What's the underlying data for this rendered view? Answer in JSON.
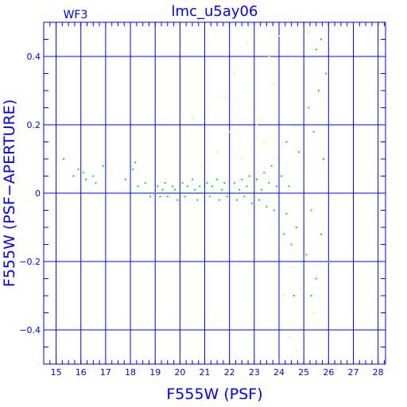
{
  "chart_data": {
    "type": "scatter",
    "title": "lmc_u5ay06",
    "corner_label": "WF3",
    "xlabel": "F555W (PSF)",
    "ylabel": "F555W (PSF−APERTURE)",
    "xlim": [
      14.5,
      28.3
    ],
    "ylim": [
      -0.5,
      0.5
    ],
    "x_ticks": [
      15,
      16,
      17,
      18,
      19,
      20,
      21,
      22,
      23,
      24,
      25,
      26,
      27,
      28
    ],
    "y_ticks": [
      -0.4,
      -0.2,
      0,
      0.2,
      0.4
    ],
    "x_tick_labels": [
      "15",
      "16",
      "17",
      "18",
      "19",
      "20",
      "21",
      "22",
      "23",
      "24",
      "25",
      "26",
      "27",
      "28"
    ],
    "y_tick_labels": [
      "−0.4",
      "−0.2",
      "0",
      "0.2",
      "0.4"
    ],
    "grid": true,
    "colors": {
      "frame": "#0000ff",
      "grid": "#0000ff",
      "text": "#0000ff",
      "main_series": "#00e600",
      "secondary_series": "#ffff00"
    },
    "series": [
      {
        "color": "#00e600",
        "points": [
          [
            15.3,
            0.1
          ],
          [
            15.7,
            0.05
          ],
          [
            15.9,
            0.07
          ],
          [
            16.1,
            0.06
          ],
          [
            16.2,
            0.04
          ],
          [
            16.5,
            0.05
          ],
          [
            16.6,
            0.03
          ],
          [
            16.9,
            0.08
          ],
          [
            17.0,
            0.06
          ],
          [
            17.8,
            0.04
          ],
          [
            18.0,
            0.01
          ],
          [
            18.1,
            0.07
          ],
          [
            18.2,
            0.09
          ],
          [
            18.3,
            0.02
          ],
          [
            18.5,
            0.0
          ],
          [
            18.6,
            0.03
          ],
          [
            18.8,
            -0.01
          ],
          [
            19.0,
            0.0
          ],
          [
            19.1,
            0.02
          ],
          [
            19.2,
            -0.01
          ],
          [
            19.3,
            0.01
          ],
          [
            19.4,
            0.03
          ],
          [
            19.5,
            -0.01
          ],
          [
            19.6,
            0.0
          ],
          [
            19.7,
            0.02
          ],
          [
            19.8,
            0.01
          ],
          [
            19.9,
            -0.02
          ],
          [
            20.0,
            0.01
          ],
          [
            20.1,
            0.03
          ],
          [
            20.2,
            -0.01
          ],
          [
            20.3,
            0.02
          ],
          [
            20.4,
            0.0
          ],
          [
            20.5,
            0.04
          ],
          [
            20.6,
            0.01
          ],
          [
            20.7,
            -0.02
          ],
          [
            20.8,
            0.02
          ],
          [
            20.9,
            0.0
          ],
          [
            21.0,
            0.01
          ],
          [
            21.1,
            0.03
          ],
          [
            21.2,
            -0.01
          ],
          [
            21.3,
            0.02
          ],
          [
            21.4,
            0.0
          ],
          [
            21.5,
            0.04
          ],
          [
            21.6,
            -0.02
          ],
          [
            21.7,
            0.01
          ],
          [
            21.8,
            0.03
          ],
          [
            21.9,
            -0.01
          ],
          [
            22.0,
            0.02
          ],
          [
            22.1,
            0.0
          ],
          [
            22.2,
            0.03
          ],
          [
            22.3,
            -0.02
          ],
          [
            22.4,
            0.01
          ],
          [
            22.5,
            0.04
          ],
          [
            22.6,
            -0.01
          ],
          [
            22.7,
            0.02
          ],
          [
            22.8,
            0.05
          ],
          [
            22.9,
            -0.03
          ],
          [
            23.0,
            0.02
          ],
          [
            23.1,
            0.04
          ],
          [
            23.2,
            -0.02
          ],
          [
            23.3,
            0.01
          ],
          [
            23.4,
            0.06
          ],
          [
            23.5,
            -0.04
          ],
          [
            23.6,
            0.03
          ],
          [
            23.7,
            0.08
          ],
          [
            23.8,
            -0.05
          ],
          [
            23.9,
            0.02
          ],
          [
            24.0,
            0.1
          ],
          [
            24.0,
            -0.08
          ],
          [
            24.1,
            0.05
          ],
          [
            24.2,
            -0.12
          ],
          [
            24.3,
            0.15
          ],
          [
            24.3,
            -0.06
          ],
          [
            24.4,
            0.02
          ],
          [
            24.5,
            -0.15
          ],
          [
            24.6,
            0.2
          ],
          [
            24.7,
            -0.1
          ],
          [
            24.8,
            0.12
          ],
          [
            24.9,
            -0.2
          ],
          [
            25.0,
            0.05
          ],
          [
            25.1,
            -0.18
          ],
          [
            25.2,
            0.25
          ],
          [
            25.3,
            -0.05
          ],
          [
            25.4,
            0.18
          ],
          [
            25.5,
            -0.25
          ],
          [
            25.6,
            0.3
          ],
          [
            25.7,
            -0.12
          ],
          [
            25.8,
            0.1
          ],
          [
            25.9,
            0.35
          ],
          [
            26.0,
            -0.2
          ],
          [
            26.1,
            0.2
          ],
          [
            25.5,
            0.42
          ],
          [
            25.7,
            0.45
          ],
          [
            25.3,
            -0.3
          ],
          [
            24.6,
            -0.3
          ]
        ]
      },
      {
        "color": "#ffff00",
        "points": [
          [
            20.5,
            0.22
          ],
          [
            20.9,
            0.08
          ],
          [
            21.5,
            0.12
          ],
          [
            21.8,
            0.28
          ],
          [
            22.0,
            0.18
          ],
          [
            22.2,
            0.35
          ],
          [
            22.5,
            0.1
          ],
          [
            22.7,
            0.44
          ],
          [
            22.9,
            0.25
          ],
          [
            23.1,
            0.2
          ],
          [
            23.4,
            0.15
          ],
          [
            23.6,
            0.4
          ],
          [
            23.8,
            0.32
          ],
          [
            24.0,
            0.46
          ],
          [
            24.2,
            -0.3
          ],
          [
            24.4,
            -0.42
          ],
          [
            24.7,
            -0.46
          ],
          [
            24.9,
            -0.28
          ],
          [
            25.2,
            0.47
          ],
          [
            25.4,
            -0.35
          ]
        ]
      }
    ]
  }
}
